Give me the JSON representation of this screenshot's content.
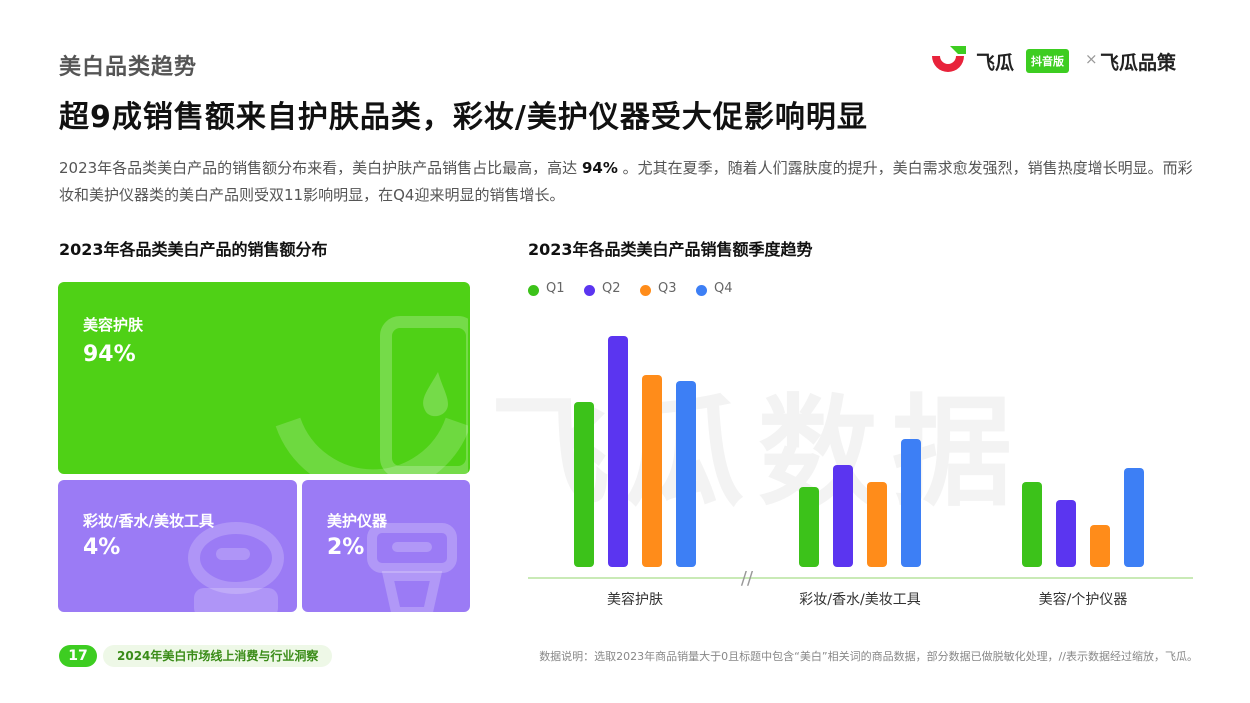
{
  "header": {
    "section": "美白品类趋势",
    "headline": "超9成销售额来自护肤品类，彩妆/美护仪器受大促影响明显",
    "description_pre": "2023年各品类美白产品的销售额分布来看，美白护肤产品销售占比最高，高达",
    "description_highlight": "94%",
    "description_post": "。尤其在夏季，随着人们露肤度的提升，美白需求愈发强烈，销售热度增长明显。而彩妆和美护仪器类的美白产品则受双11影响明显，在Q4迎来明显的销售增长。"
  },
  "logo": {
    "brand1": "飞瓜",
    "badge": "抖音版",
    "separator": "×",
    "brand2": "飞瓜品策"
  },
  "colors": {
    "green": "#4fd116",
    "purple": "#9b7bf5",
    "q1": "#3cc21a",
    "q2": "#5b35f0",
    "q3": "#ff8c1a",
    "q4": "#3d7ff5",
    "baseline": "#c9eab6"
  },
  "treemap": {
    "title": "2023年各品类美白产品的销售额分布",
    "tiles": [
      {
        "label": "美容护肤",
        "value": "94%"
      },
      {
        "label": "彩妆/香水/美妆工具",
        "value": "4%"
      },
      {
        "label": "美护仪器",
        "value": "2%"
      }
    ]
  },
  "chart_data": {
    "type": "bar",
    "title": "2023年各品类美白产品销售额季度趋势",
    "categories": [
      "美容护肤",
      "彩妆/香水/美妆工具",
      "美容/个护仪器"
    ],
    "series": [
      {
        "name": "Q1",
        "values": [
          165,
          80,
          85
        ]
      },
      {
        "name": "Q2",
        "values": [
          231,
          102,
          67
        ]
      },
      {
        "name": "Q3",
        "values": [
          192,
          85,
          42
        ]
      },
      {
        "name": "Q4",
        "values": [
          186,
          128,
          99
        ]
      }
    ],
    "axis_break_symbol": "//",
    "grid": false,
    "legend_position": "top-left",
    "y_axis_visible": false
  },
  "watermark": "飞瓜数据",
  "footer": {
    "page": "17",
    "report_title": "2024年美白市场线上消费与行业洞察",
    "note": "数据说明：选取2023年商品销量大于0且标题中包含“美白”相关词的商品数据，部分数据已做脱敏化处理，//表示数据经过缩放，飞瓜。"
  }
}
